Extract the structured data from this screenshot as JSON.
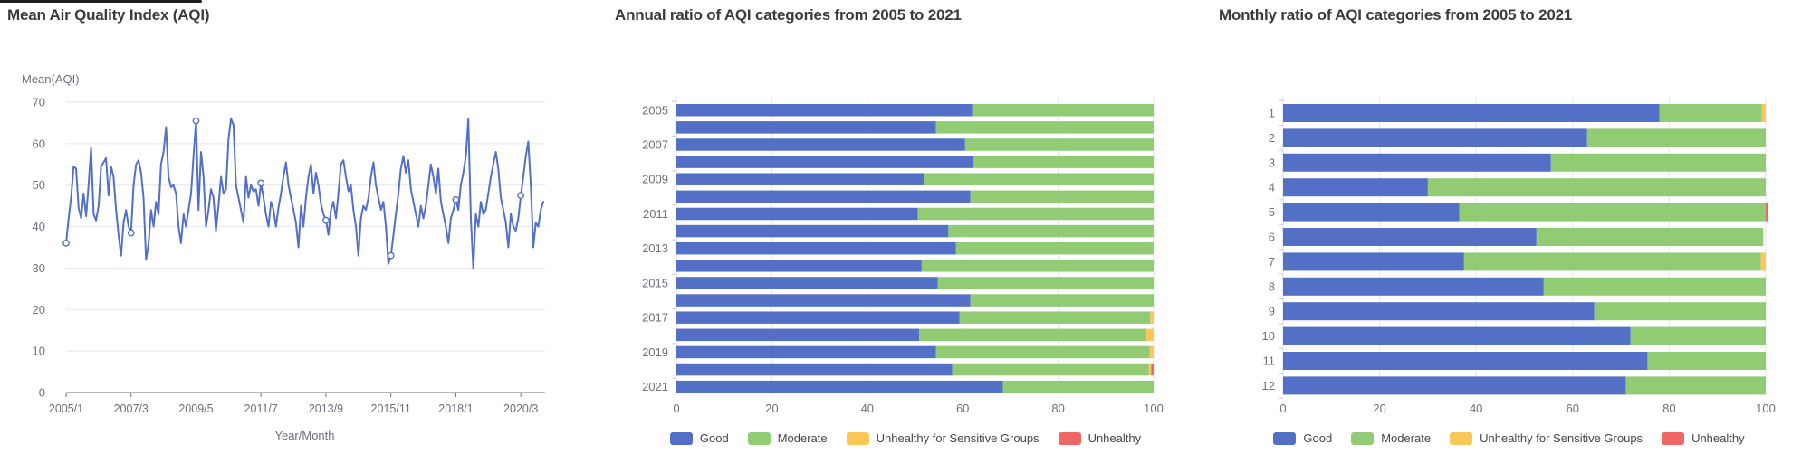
{
  "palette": {
    "blue": "#5470c6",
    "green": "#91cc75",
    "yellow": "#fac858",
    "red": "#ee6666",
    "axis_text": "#6E7079",
    "grid": "#E0E6F1",
    "title_text": "#3b3b3b"
  },
  "chart_data": [
    {
      "type": "line",
      "title": "Mean Air Quality Index (AQI)",
      "y_name": "Mean(AQI)",
      "x_name": "Year/Month",
      "ylim": [
        0,
        70
      ],
      "y_ticks": [
        0,
        10,
        20,
        30,
        40,
        50,
        60,
        70
      ],
      "x_tick_labels": [
        "2005/1",
        "2007/3",
        "2009/5",
        "2011/7",
        "2013/9",
        "2015/11",
        "2018/1",
        "2020/3"
      ],
      "x_tick_indices": [
        0,
        26,
        52,
        78,
        104,
        130,
        156,
        182
      ],
      "marker_indices": [
        0,
        26,
        52,
        78,
        104,
        130,
        156,
        182
      ],
      "x_start": "2005/1",
      "x_end": "2020/12",
      "grid": true,
      "color": "#5470c6",
      "values": [
        36,
        42,
        47,
        54.5,
        54,
        44.5,
        42,
        48,
        42.5,
        50,
        59,
        43,
        41.5,
        45,
        54.5,
        55.5,
        56.5,
        47.5,
        54.5,
        52,
        44,
        38,
        33,
        41,
        44,
        40,
        38.5,
        50,
        55,
        56,
        53,
        47,
        32,
        36,
        44,
        40,
        46,
        43,
        55,
        58,
        64,
        52,
        49.5,
        50,
        48,
        40,
        36,
        43,
        40,
        44,
        48,
        57,
        65.5,
        44,
        58,
        52,
        40,
        44,
        49,
        47,
        39,
        45,
        52,
        48,
        49,
        61,
        66,
        64.5,
        50,
        47,
        44,
        41,
        52,
        47,
        50,
        48.5,
        49,
        45,
        50.5,
        47,
        43,
        40,
        46,
        44,
        40,
        44.5,
        48,
        52,
        55.5,
        50,
        47,
        44,
        41,
        35,
        45,
        40,
        47,
        52,
        55,
        48,
        53,
        50,
        45.5,
        43,
        41.5,
        38,
        44,
        46,
        42,
        48,
        55,
        56,
        52,
        48.5,
        50,
        44,
        40,
        33,
        42,
        45,
        44,
        47,
        52,
        55.5,
        50,
        47,
        44,
        46,
        40,
        31,
        33,
        38,
        43,
        48,
        54,
        57,
        53,
        56,
        49,
        46,
        43,
        40,
        45,
        42,
        45,
        50,
        55,
        52,
        48,
        54,
        46,
        43,
        40,
        36,
        42,
        44,
        46.5,
        44,
        50,
        53,
        57,
        66,
        42,
        30,
        43,
        40,
        46,
        43,
        44,
        48,
        52,
        55,
        58,
        54,
        47,
        44,
        41,
        35,
        43,
        40,
        39,
        42,
        47.5,
        52,
        57,
        60.5,
        50,
        35,
        41,
        40,
        44,
        46
      ]
    },
    {
      "type": "bar",
      "orientation": "horizontal-stacked",
      "title": "Annual ratio of AQI categories from 2005 to 2021",
      "categories": [
        "2005",
        "2006",
        "2007",
        "2008",
        "2009",
        "2010",
        "2011",
        "2012",
        "2013",
        "2014",
        "2015",
        "2016",
        "2017",
        "2018",
        "2019",
        "2020",
        "2021"
      ],
      "label_every": 2,
      "x_ticks": [
        0,
        20,
        40,
        60,
        80,
        100
      ],
      "xlim": [
        0,
        100
      ],
      "legend_position": "bottom",
      "series": [
        {
          "name": "Good",
          "color": "#5470c6",
          "values": [
            62,
            54.4,
            60.5,
            62.3,
            51.8,
            61.6,
            50.6,
            57,
            58.6,
            51.4,
            54.8,
            61.6,
            59.3,
            50.9,
            54.4,
            57.8,
            68.4
          ]
        },
        {
          "name": "Moderate",
          "color": "#91cc75",
          "values": [
            38,
            45.6,
            39.5,
            37.7,
            48.2,
            38.4,
            49.4,
            43,
            41.4,
            48.6,
            45.2,
            38.4,
            40,
            47.6,
            44.8,
            41.2,
            31.6
          ]
        },
        {
          "name": "Unhealthy for Sensitive Groups",
          "color": "#fac858",
          "values": [
            0,
            0,
            0,
            0,
            0,
            0,
            0,
            0,
            0,
            0,
            0,
            0,
            0.7,
            1.5,
            0.8,
            0.5,
            0
          ]
        },
        {
          "name": "Unhealthy",
          "color": "#ee6666",
          "values": [
            0,
            0,
            0,
            0,
            0,
            0,
            0,
            0,
            0,
            0,
            0,
            0,
            0,
            0,
            0,
            0.5,
            0
          ]
        }
      ]
    },
    {
      "type": "bar",
      "orientation": "horizontal-stacked",
      "title": "Monthly ratio of AQI categories from 2005 to 2021",
      "categories": [
        "1",
        "2",
        "3",
        "4",
        "5",
        "6",
        "7",
        "8",
        "9",
        "10",
        "11",
        "12"
      ],
      "label_every": 1,
      "x_ticks": [
        0,
        20,
        40,
        60,
        80,
        100
      ],
      "xlim": [
        0,
        100
      ],
      "legend_position": "bottom",
      "series": [
        {
          "name": "Good",
          "color": "#5470c6",
          "values": [
            78,
            63,
            55.5,
            30,
            36.5,
            52.5,
            37.5,
            54,
            64.5,
            72,
            75.5,
            71
          ]
        },
        {
          "name": "Moderate",
          "color": "#91cc75",
          "values": [
            21.2,
            37,
            44.5,
            70,
            63.5,
            47,
            61.5,
            46,
            35.5,
            28,
            24.5,
            29
          ]
        },
        {
          "name": "Unhealthy for Sensitive Groups",
          "color": "#fac858",
          "values": [
            0.8,
            0,
            0,
            0,
            0,
            0,
            1,
            0,
            0,
            0,
            0,
            0
          ]
        },
        {
          "name": "Unhealthy",
          "color": "#ee6666",
          "values": [
            0,
            0,
            0,
            0,
            0.5,
            0,
            0,
            0,
            0,
            0,
            0,
            0
          ]
        }
      ]
    }
  ],
  "legend_labels": [
    "Good",
    "Moderate",
    "Unhealthy for Sensitive Groups",
    "Unhealthy"
  ]
}
